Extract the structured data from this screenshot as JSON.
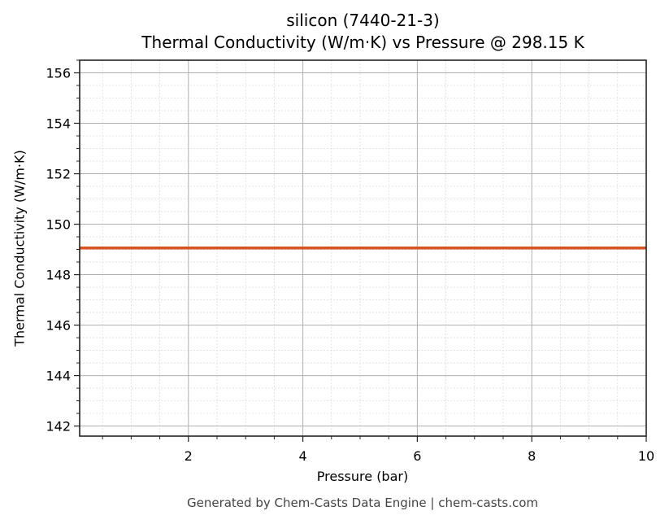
{
  "chart_data": {
    "type": "line",
    "title": "silicon (7440-21-3)",
    "subtitle": "Thermal Conductivity (W/m·K) vs Pressure @ 298.15 K",
    "xlabel": "Pressure (bar)",
    "ylabel": "Thermal Conductivity (W/m·K)",
    "xlim": [
      0.1,
      10
    ],
    "ylim": [
      141.6,
      156.5
    ],
    "x_ticks": [
      2,
      4,
      6,
      8,
      10
    ],
    "y_ticks": [
      142,
      144,
      146,
      148,
      150,
      152,
      154,
      156
    ],
    "grid": true,
    "minor_grid": true,
    "legend": null,
    "series": [
      {
        "name": "silicon",
        "color": "#d9531e",
        "x": [
          0.1,
          1,
          2,
          3,
          4,
          5,
          6,
          7,
          8,
          9,
          10
        ],
        "y": [
          149.06,
          149.06,
          149.06,
          149.06,
          149.06,
          149.06,
          149.06,
          149.06,
          149.06,
          149.06,
          149.06
        ]
      }
    ]
  },
  "labels": {
    "title": "silicon (7440-21-3)",
    "subtitle": "Thermal Conductivity (W/m·K) vs Pressure @ 298.15 K",
    "xlabel": "Pressure (bar)",
    "ylabel": "Thermal Conductivity (W/m·K)",
    "footer": "Generated by Chem-Casts Data Engine | chem-casts.com"
  }
}
